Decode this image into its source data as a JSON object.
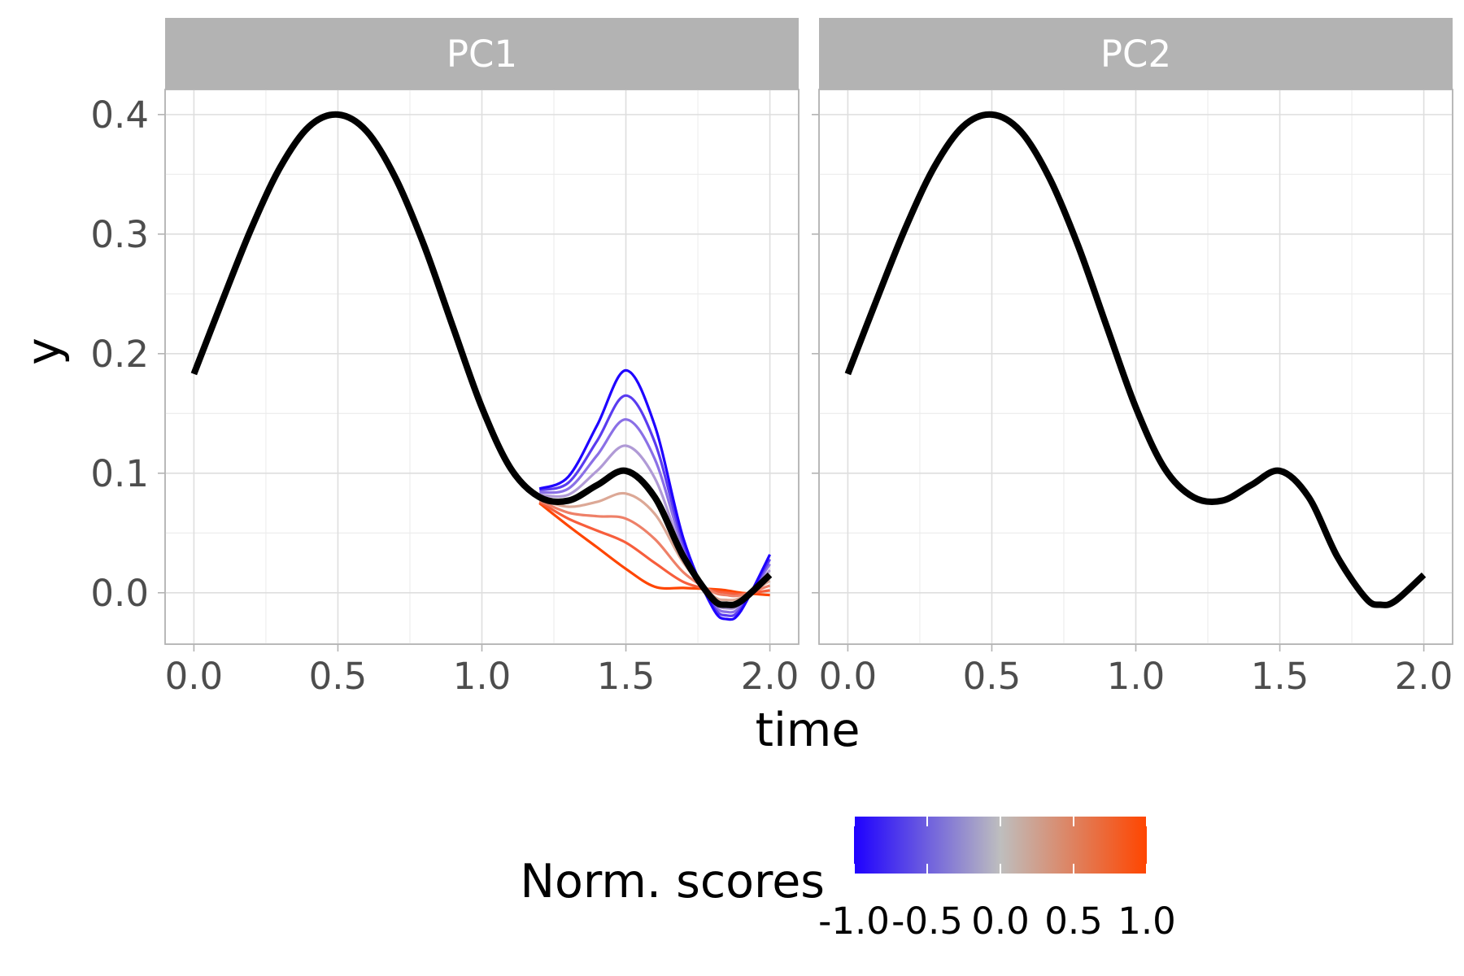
{
  "chart_data": {
    "type": "line",
    "panels": [
      {
        "strip_label": "PC1",
        "mean_curve": {
          "x": [
            0.0,
            0.1,
            0.2,
            0.3,
            0.4,
            0.5,
            0.6,
            0.7,
            0.8,
            0.9,
            1.0,
            1.1,
            1.2,
            1.3,
            1.4,
            1.5,
            1.6,
            1.7,
            1.8,
            1.85,
            1.9,
            2.0
          ],
          "y": [
            0.183,
            0.245,
            0.305,
            0.356,
            0.39,
            0.4,
            0.386,
            0.347,
            0.29,
            0.222,
            0.155,
            0.104,
            0.08,
            0.077,
            0.09,
            0.102,
            0.08,
            0.03,
            -0.005,
            -0.01,
            -0.007,
            0.015
          ],
          "color": "#000000"
        },
        "variation_curves": [
          {
            "score": -1.0,
            "color": "#1e00ff",
            "x": [
              1.2,
              1.3,
              1.4,
              1.5,
              1.6,
              1.7,
              1.8,
              1.85,
              1.9,
              2.0
            ],
            "y": [
              0.087,
              0.097,
              0.14,
              0.186,
              0.14,
              0.045,
              -0.012,
              -0.022,
              -0.015,
              0.032
            ]
          },
          {
            "score": -0.75,
            "color": "#5a3cf0",
            "x": [
              1.2,
              1.3,
              1.4,
              1.5,
              1.6,
              1.7,
              1.8,
              1.85,
              1.9,
              2.0
            ],
            "y": [
              0.086,
              0.092,
              0.127,
              0.165,
              0.126,
              0.041,
              -0.01,
              -0.019,
              -0.013,
              0.028
            ]
          },
          {
            "score": -0.5,
            "color": "#8a70e6",
            "x": [
              1.2,
              1.3,
              1.4,
              1.5,
              1.6,
              1.7,
              1.8,
              1.85,
              1.9,
              2.0
            ],
            "y": [
              0.084,
              0.087,
              0.115,
              0.145,
              0.112,
              0.037,
              -0.008,
              -0.016,
              -0.011,
              0.024
            ]
          },
          {
            "score": -0.25,
            "color": "#b09ad6",
            "x": [
              1.2,
              1.3,
              1.4,
              1.5,
              1.6,
              1.7,
              1.8,
              1.85,
              1.9,
              2.0
            ],
            "y": [
              0.082,
              0.082,
              0.102,
              0.123,
              0.096,
              0.033,
              -0.006,
              -0.013,
              -0.009,
              0.019
            ]
          },
          {
            "score": 0.25,
            "color": "#dca896",
            "x": [
              1.2,
              1.3,
              1.4,
              1.5,
              1.6,
              1.7,
              1.8,
              1.85,
              1.9,
              2.0
            ],
            "y": [
              0.078,
              0.072,
              0.076,
              0.083,
              0.066,
              0.025,
              -0.002,
              -0.006,
              -0.004,
              0.01
            ]
          },
          {
            "score": 0.5,
            "color": "#ee8068",
            "x": [
              1.2,
              1.3,
              1.4,
              1.5,
              1.6,
              1.7,
              1.8,
              1.85,
              1.9,
              2.0
            ],
            "y": [
              0.077,
              0.067,
              0.064,
              0.062,
              0.045,
              0.017,
              0.001,
              -0.002,
              -0.002,
              0.006
            ]
          },
          {
            "score": 0.75,
            "color": "#f75e3c",
            "x": [
              1.2,
              1.3,
              1.4,
              1.5,
              1.6,
              1.7,
              1.8,
              1.85,
              1.9,
              2.0
            ],
            "y": [
              0.076,
              0.062,
              0.052,
              0.042,
              0.025,
              0.009,
              0.002,
              0.0,
              -0.001,
              0.002
            ]
          },
          {
            "score": 1.0,
            "color": "#ff4500",
            "x": [
              1.2,
              1.3,
              1.4,
              1.5,
              1.6,
              1.7,
              1.8,
              1.85,
              1.9,
              2.0
            ],
            "y": [
              0.075,
              0.056,
              0.038,
              0.02,
              0.005,
              0.004,
              0.003,
              0.002,
              0.0,
              -0.002
            ]
          }
        ]
      },
      {
        "strip_label": "PC2",
        "mean_curve": {
          "x": [
            0.0,
            0.1,
            0.2,
            0.3,
            0.4,
            0.5,
            0.6,
            0.7,
            0.8,
            0.9,
            1.0,
            1.1,
            1.2,
            1.3,
            1.4,
            1.5,
            1.6,
            1.7,
            1.8,
            1.85,
            1.9,
            2.0
          ],
          "y": [
            0.183,
            0.245,
            0.305,
            0.356,
            0.39,
            0.4,
            0.386,
            0.347,
            0.29,
            0.222,
            0.155,
            0.104,
            0.08,
            0.077,
            0.09,
            0.102,
            0.08,
            0.03,
            -0.005,
            -0.01,
            -0.007,
            0.015
          ],
          "color": "#000000"
        },
        "variation_curves": []
      }
    ],
    "xlabel": "time",
    "ylabel": "y",
    "xlim": [
      -0.1,
      2.1
    ],
    "ylim": [
      -0.043,
      0.421
    ],
    "x_ticks": [
      "0.0",
      "0.5",
      "1.0",
      "1.5",
      "2.0"
    ],
    "y_ticks": [
      "0.0",
      "0.1",
      "0.2",
      "0.3",
      "0.4"
    ],
    "grid": true,
    "legend": {
      "title": "Norm. scores",
      "position": "bottom",
      "range": [
        -1.0,
        1.0
      ],
      "low_color": "#1e00ff",
      "mid_color": "#bebebe",
      "high_color": "#ff4500",
      "tick_labels": [
        "-1.0",
        "-0.5",
        "0.0",
        "0.5",
        "1.0"
      ]
    }
  }
}
